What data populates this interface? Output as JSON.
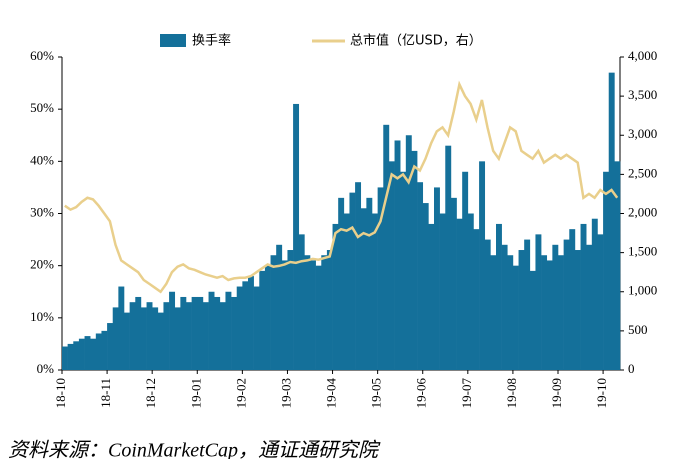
{
  "chart_data": {
    "type": "bar-line",
    "categories": [
      "18-10",
      null,
      null,
      null,
      null,
      null,
      null,
      null,
      "18-11",
      null,
      null,
      null,
      null,
      null,
      null,
      null,
      "18-12",
      null,
      null,
      null,
      null,
      null,
      null,
      null,
      "19-01",
      null,
      null,
      null,
      null,
      null,
      null,
      null,
      "19-02",
      null,
      null,
      null,
      null,
      null,
      null,
      null,
      "19-03",
      null,
      null,
      null,
      null,
      null,
      null,
      null,
      "19-04",
      null,
      null,
      null,
      null,
      null,
      null,
      null,
      "19-05",
      null,
      null,
      null,
      null,
      null,
      null,
      null,
      "19-06",
      null,
      null,
      null,
      null,
      null,
      null,
      null,
      "19-07",
      null,
      null,
      null,
      null,
      null,
      null,
      null,
      "19-08",
      null,
      null,
      null,
      null,
      null,
      null,
      null,
      "19-09",
      null,
      null,
      null,
      null,
      null,
      null,
      null,
      "19-10",
      null,
      null
    ],
    "series": [
      {
        "name": "换手率",
        "type": "bar",
        "color": "#14709a",
        "values": [
          4.5,
          5,
          5.5,
          6,
          6.5,
          6,
          7,
          7.5,
          9,
          12,
          16,
          11,
          13,
          14,
          12,
          13,
          12,
          11,
          13,
          15,
          12,
          14,
          13,
          14,
          14,
          13,
          15,
          14,
          13,
          15,
          14,
          16,
          17,
          18,
          16,
          19,
          20,
          22,
          24,
          21,
          23,
          51,
          26,
          22,
          21,
          20,
          22,
          23,
          28,
          33,
          30,
          34,
          36,
          31,
          33,
          30,
          35,
          47,
          40,
          44,
          38,
          45,
          42,
          36,
          32,
          28,
          35,
          30,
          43,
          33,
          29,
          38,
          30,
          27,
          40,
          25,
          22,
          28,
          24,
          22,
          20,
          23,
          25,
          19,
          26,
          22,
          21,
          24,
          22,
          25,
          27,
          23,
          28,
          24,
          29,
          26,
          38,
          57,
          40
        ]
      },
      {
        "name": "总市值（亿USD，右）",
        "type": "line",
        "axis": "y2",
        "color": "#e9cf8c",
        "values": [
          2100,
          2050,
          2080,
          2150,
          2200,
          2180,
          2100,
          2000,
          1900,
          1600,
          1400,
          1350,
          1300,
          1250,
          1150,
          1100,
          1050,
          1000,
          1100,
          1250,
          1320,
          1350,
          1300,
          1280,
          1250,
          1220,
          1200,
          1180,
          1200,
          1150,
          1170,
          1180,
          1180,
          1200,
          1250,
          1300,
          1350,
          1320,
          1330,
          1350,
          1380,
          1370,
          1390,
          1400,
          1420,
          1410,
          1430,
          1450,
          1750,
          1800,
          1780,
          1820,
          1700,
          1750,
          1720,
          1760,
          1900,
          2200,
          2500,
          2450,
          2500,
          2400,
          2600,
          2550,
          2700,
          2900,
          3050,
          3100,
          3000,
          3300,
          3650,
          3500,
          3400,
          3200,
          3450,
          3100,
          2800,
          2700,
          2900,
          3100,
          3050,
          2800,
          2750,
          2700,
          2800,
          2650,
          2700,
          2750,
          2700,
          2750,
          2700,
          2650,
          2200,
          2250,
          2200,
          2300,
          2250,
          2300,
          2200
        ]
      }
    ],
    "ylim": [
      0,
      60
    ],
    "yticks": [
      {
        "value": 0,
        "label": "0%"
      },
      {
        "value": 10,
        "label": "10%"
      },
      {
        "value": 20,
        "label": "20%"
      },
      {
        "value": 30,
        "label": "30%"
      },
      {
        "value": 40,
        "label": "40%"
      },
      {
        "value": 50,
        "label": "50%"
      },
      {
        "value": 60,
        "label": "60%"
      }
    ],
    "y2lim": [
      0,
      4000
    ],
    "y2ticks": [
      0,
      500,
      {
        "value": 1000,
        "label": "1,000"
      },
      {
        "value": 1500,
        "label": "1,500"
      },
      {
        "value": 2000,
        "label": "2,000"
      },
      {
        "value": 2500,
        "label": "2,500"
      },
      {
        "value": 3000,
        "label": "3,000"
      },
      {
        "value": 3500,
        "label": "3,500"
      },
      {
        "value": 4000,
        "label": "4,000"
      }
    ],
    "source": "资料来源：CoinMarketCap，通证通研究院"
  }
}
